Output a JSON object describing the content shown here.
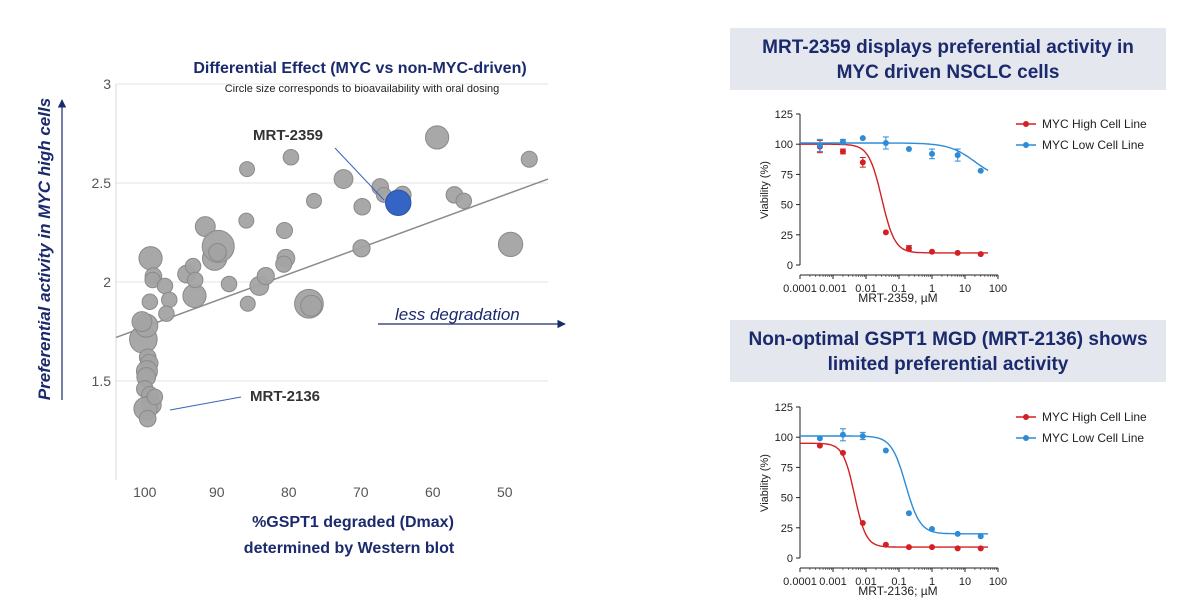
{
  "chart_data": [
    {
      "type": "scatter",
      "title": "Differential Effect (MYC vs non-MYC-driven)",
      "subtitle": "Circle size corresponds to bioavailability with oral dosing",
      "xlabel": [
        "%GSPT1 degraded (Dmax)",
        "determined by Western blot"
      ],
      "ylabel": "Preferential activity in MYC high cells",
      "x_reversed": true,
      "xlim": [
        104,
        44
      ],
      "ylim": [
        1.0,
        3.0
      ],
      "xticks": [
        100,
        90,
        80,
        70,
        60,
        50
      ],
      "yticks": [
        1.5,
        2,
        2.5,
        3
      ],
      "ytick_labels": [
        "1.5",
        "2",
        "2.5",
        "3"
      ],
      "trendline": {
        "x": [
          104,
          44
        ],
        "y": [
          1.72,
          2.52
        ]
      },
      "x_arrow_label": "less degradation",
      "points": [
        {
          "x": 100.2,
          "y": 1.71,
          "s": 1.6
        },
        {
          "x": 99.8,
          "y": 1.78,
          "s": 1.2
        },
        {
          "x": 100.4,
          "y": 1.8,
          "s": 0.9
        },
        {
          "x": 99.6,
          "y": 1.62,
          "s": 0.6
        },
        {
          "x": 99.4,
          "y": 1.59,
          "s": 0.7
        },
        {
          "x": 99.7,
          "y": 1.55,
          "s": 1.0
        },
        {
          "x": 99.8,
          "y": 1.52,
          "s": 0.8
        },
        {
          "x": 100.0,
          "y": 1.46,
          "s": 0.6
        },
        {
          "x": 99.3,
          "y": 1.43,
          "s": 0.6
        },
        {
          "x": 99.1,
          "y": 1.38,
          "s": 0.9
        },
        {
          "x": 99.9,
          "y": 1.36,
          "s": 1.2
        },
        {
          "x": 99.6,
          "y": 1.31,
          "s": 0.6
        },
        {
          "x": 98.6,
          "y": 1.42,
          "s": 0.5
        },
        {
          "x": 99.2,
          "y": 2.12,
          "s": 1.2
        },
        {
          "x": 98.8,
          "y": 2.03,
          "s": 0.6
        },
        {
          "x": 98.9,
          "y": 2.01,
          "s": 0.5
        },
        {
          "x": 97.2,
          "y": 1.98,
          "s": 0.5
        },
        {
          "x": 96.6,
          "y": 1.91,
          "s": 0.5
        },
        {
          "x": 99.3,
          "y": 1.9,
          "s": 0.5
        },
        {
          "x": 97.0,
          "y": 1.84,
          "s": 0.5
        },
        {
          "x": 94.2,
          "y": 2.04,
          "s": 0.7
        },
        {
          "x": 93.3,
          "y": 2.08,
          "s": 0.5
        },
        {
          "x": 93.1,
          "y": 1.93,
          "s": 1.2
        },
        {
          "x": 93.0,
          "y": 2.01,
          "s": 0.5
        },
        {
          "x": 91.6,
          "y": 2.28,
          "s": 0.9
        },
        {
          "x": 90.3,
          "y": 2.12,
          "s": 1.3
        },
        {
          "x": 89.8,
          "y": 2.18,
          "s": 2.0
        },
        {
          "x": 89.9,
          "y": 2.15,
          "s": 0.7
        },
        {
          "x": 88.3,
          "y": 1.99,
          "s": 0.5
        },
        {
          "x": 85.9,
          "y": 2.31,
          "s": 0.45
        },
        {
          "x": 85.8,
          "y": 2.57,
          "s": 0.45
        },
        {
          "x": 84.1,
          "y": 1.98,
          "s": 0.8
        },
        {
          "x": 85.7,
          "y": 1.89,
          "s": 0.45
        },
        {
          "x": 83.2,
          "y": 2.03,
          "s": 0.65
        },
        {
          "x": 80.6,
          "y": 2.26,
          "s": 0.55
        },
        {
          "x": 80.4,
          "y": 2.12,
          "s": 0.7
        },
        {
          "x": 80.7,
          "y": 2.09,
          "s": 0.55
        },
        {
          "x": 79.7,
          "y": 2.63,
          "s": 0.5
        },
        {
          "x": 77.2,
          "y": 1.89,
          "s": 1.7
        },
        {
          "x": 76.9,
          "y": 1.88,
          "s": 1.0
        },
        {
          "x": 76.5,
          "y": 2.41,
          "s": 0.45
        },
        {
          "x": 72.4,
          "y": 2.52,
          "s": 0.8
        },
        {
          "x": 69.9,
          "y": 2.17,
          "s": 0.65
        },
        {
          "x": 69.8,
          "y": 2.38,
          "s": 0.6
        },
        {
          "x": 67.3,
          "y": 2.48,
          "s": 0.6
        },
        {
          "x": 66.8,
          "y": 2.44,
          "s": 0.45
        },
        {
          "x": 64.2,
          "y": 2.44,
          "s": 0.65
        },
        {
          "x": 59.4,
          "y": 2.73,
          "s": 1.2
        },
        {
          "x": 57.0,
          "y": 2.44,
          "s": 0.6
        },
        {
          "x": 55.7,
          "y": 2.41,
          "s": 0.5
        },
        {
          "x": 49.2,
          "y": 2.19,
          "s": 1.3
        },
        {
          "x": 46.6,
          "y": 2.62,
          "s": 0.55
        }
      ],
      "highlight": {
        "label": "MRT-2359",
        "x": 64.8,
        "y": 2.4,
        "s": 1.4,
        "color": "#3464c4"
      },
      "annotations": [
        {
          "label": "MRT-2359",
          "target": [
            64.8,
            2.4
          ]
        },
        {
          "label": "MRT-2136",
          "target": [
            97.0,
            1.42
          ]
        }
      ]
    },
    {
      "type": "line",
      "title": "MRT-2359 displays preferential activity in MYC driven NSCLC cells",
      "title_lines": [
        "MRT-2359 displays preferential activity in",
        "MYC driven NSCLC cells"
      ],
      "xlabel": "MRT-2359, µM",
      "ylabel": "Viability (%)",
      "x_scale": "log",
      "xlim": [
        0.0001,
        100
      ],
      "ylim": [
        0,
        125
      ],
      "xtick_labels": [
        "0.0001",
        "0.001",
        "0.01",
        "0.1",
        "1",
        "10",
        "100"
      ],
      "yticks": [
        0,
        25,
        50,
        75,
        100,
        125
      ],
      "series": [
        {
          "name": "MYC High Cell Line",
          "color": "#d32024",
          "x": [
            0.0004,
            0.002,
            0.008,
            0.04,
            0.2,
            1,
            6,
            30
          ],
          "y": [
            98,
            94,
            85,
            27,
            14,
            11,
            10,
            9
          ],
          "err": [
            5,
            2,
            4,
            0,
            2,
            0,
            0,
            0
          ],
          "fit": {
            "top": 100,
            "bottom": 10,
            "ic50": 0.03,
            "hill": 2.2
          }
        },
        {
          "name": "MYC Low Cell Line",
          "color": "#2e8bd6",
          "x": [
            0.0004,
            0.002,
            0.008,
            0.04,
            0.2,
            1,
            6,
            30
          ],
          "y": [
            99,
            102,
            105,
            101,
            96,
            92,
            91,
            78
          ],
          "err": [
            5,
            2,
            0,
            5,
            0,
            4,
            5,
            0
          ],
          "fit": {
            "top": 101,
            "bottom": 70,
            "ic50": 20,
            "hill": 1.1
          }
        }
      ]
    },
    {
      "type": "line",
      "title": "Non-optimal GSPT1 MGD (MRT-2136) shows limited preferential activity",
      "title_lines": [
        "Non-optimal GSPT1 MGD (MRT-2136) shows",
        "limited preferential activity"
      ],
      "xlabel": "MRT-2136; µM",
      "ylabel": "Viability (%)",
      "x_scale": "log",
      "xlim": [
        0.0001,
        100
      ],
      "ylim": [
        0,
        125
      ],
      "xtick_labels": [
        "0.0001",
        "0.001",
        "0.01",
        "0.1",
        "1",
        "10",
        "100"
      ],
      "yticks": [
        0,
        25,
        50,
        75,
        100,
        125
      ],
      "series": [
        {
          "name": "MYC High Cell Line",
          "color": "#d32024",
          "x": [
            0.0004,
            0.002,
            0.008,
            0.04,
            0.2,
            1,
            6,
            30
          ],
          "y": [
            93,
            87,
            29,
            11,
            9,
            9,
            8,
            8
          ],
          "err": [
            0,
            0,
            0,
            0,
            0,
            0,
            0,
            0
          ],
          "fit": {
            "top": 95,
            "bottom": 9,
            "ic50": 0.0045,
            "hill": 2.5
          }
        },
        {
          "name": "MYC Low Cell Line",
          "color": "#2e8bd6",
          "x": [
            0.0004,
            0.002,
            0.008,
            0.04,
            0.2,
            1,
            6,
            30
          ],
          "y": [
            99,
            102,
            101,
            89,
            37,
            24,
            20,
            18
          ],
          "err": [
            0,
            5,
            3,
            0,
            0,
            0,
            0,
            0
          ],
          "fit": {
            "top": 101,
            "bottom": 20,
            "ic50": 0.16,
            "hill": 2.0
          }
        }
      ]
    }
  ]
}
